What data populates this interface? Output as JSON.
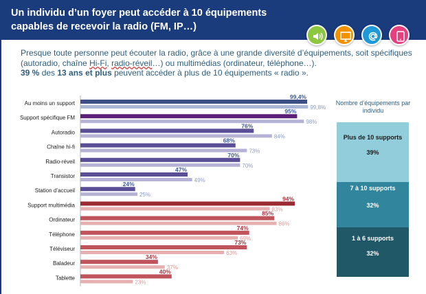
{
  "title": "Un individu d’un foyer peut accéder à 10 équipements capables de recevoir la radio (FM, IP…)",
  "icons": [
    {
      "name": "speaker-icon",
      "color": "#8dc63f"
    },
    {
      "name": "screen-icon",
      "color": "#f39200"
    },
    {
      "name": "at-icon",
      "color": "#1f9ad6"
    },
    {
      "name": "tablet-icon",
      "color": "#e6407e"
    }
  ],
  "intro": {
    "line1a": "Presque toute personne peut écouter la radio, grâce à une grande diversité d’équipements, soit spécifiques (autoradio, chaîne ",
    "hifi": "Hi-Fi",
    "comma": ", ",
    "radioreveil": "radio-réveil",
    "line1b": "…) ou multimédias (ordinateur, téléphone…).",
    "pct": "39 %",
    "mid": " des ",
    "age": "13 ans et plus",
    "end": " peuvent accéder à plus de 10 équipements « radio »."
  },
  "chart_data": {
    "type": "bar",
    "orientation": "horizontal",
    "categories": [
      "Au moins un support",
      "Support spécifique FM",
      "Autoradio",
      "Chaîne hi-fi",
      "Radio-réveil",
      "Transistor",
      "Station d’accueil",
      "Support multimédia",
      "Ordinateur",
      "Téléphone",
      "Téléviseur",
      "Baladeur",
      "Tablette"
    ],
    "series": [
      {
        "values": [
          99.4,
          95,
          76,
          68,
          70,
          47,
          24,
          94,
          85,
          74,
          73,
          34,
          40
        ]
      },
      {
        "values": [
          99.8,
          98,
          84,
          73,
          70,
          49,
          25,
          83,
          86,
          69,
          63,
          37,
          23
        ]
      }
    ],
    "labels_primary": [
      "99,4%",
      "95%",
      "76%",
      "68%",
      "70%",
      "47%",
      "24%",
      "94%",
      "85%",
      "74%",
      "73%",
      "34%",
      "40%"
    ],
    "labels_secondary": [
      "99,8%",
      "98%",
      "84%",
      "73%",
      "70%",
      "49%",
      "25%",
      "83%",
      "86%",
      "69%",
      "63%",
      "37%",
      "23%"
    ],
    "xlim": [
      0,
      100
    ],
    "colors": {
      "specific_primary": "#5a4e96",
      "specific_secondary": "#b6b2d6",
      "fm_primary": "#5c1f78",
      "multimedia_header_primary": "#9c2a33",
      "multimedia_primary": "#c0545c",
      "multimedia_secondary": "#e6b0b0",
      "first_primary": "#3d4f86",
      "first_secondary": "#a9b6d6",
      "label_blue": "#3c5a96",
      "label_blue_light": "#8c9cc0",
      "label_red": "#a8323c",
      "label_red_light": "#d89a9a"
    }
  },
  "legend": {
    "title": "Nombre d’équipements par individu",
    "segments": [
      {
        "label": "Plus de 10 supports",
        "value": "39%",
        "color": "#92cddc",
        "text": "#1a1a1a"
      },
      {
        "label": "7 à 10 supports",
        "value": "32%",
        "color": "#31859c",
        "text": "#ffffff"
      },
      {
        "label": "1 à 6 supports",
        "value": "32%",
        "color": "#215868",
        "text": "#ffffff"
      }
    ]
  }
}
